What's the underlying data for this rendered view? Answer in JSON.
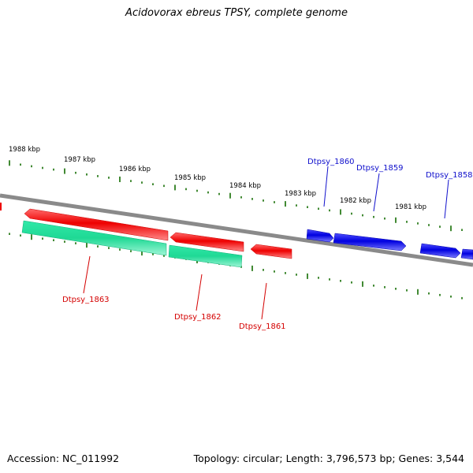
{
  "title": "Acidovorax ebreus TPSY, complete genome",
  "footer": {
    "accession": "Accession: NC_011992",
    "summary": "Topology: circular; Length: 3,796,573 bp; Genes: 3,544"
  },
  "colors": {
    "backbone": "#808080",
    "scale_ticks": "#2e7d1e",
    "reverse_strand": "#ff0000",
    "forward_strand": "#0000ff",
    "rna_feature": "#22e6a0",
    "reverse_label": "#d40000",
    "forward_label": "#1010cc"
  },
  "scale_labels": [
    "1988 kbp",
    "1987 kbp",
    "1986 kbp",
    "1985 kbp",
    "1984 kbp",
    "1983 kbp",
    "1982 kbp",
    "1981 kbp"
  ],
  "gene_labels_top": [
    "Dtpsy_1860",
    "Dtpsy_1859",
    "Dtpsy_1858"
  ],
  "gene_labels_bottom": [
    "Dtpsy_1863",
    "Dtpsy_1862",
    "Dtpsy_1861"
  ]
}
